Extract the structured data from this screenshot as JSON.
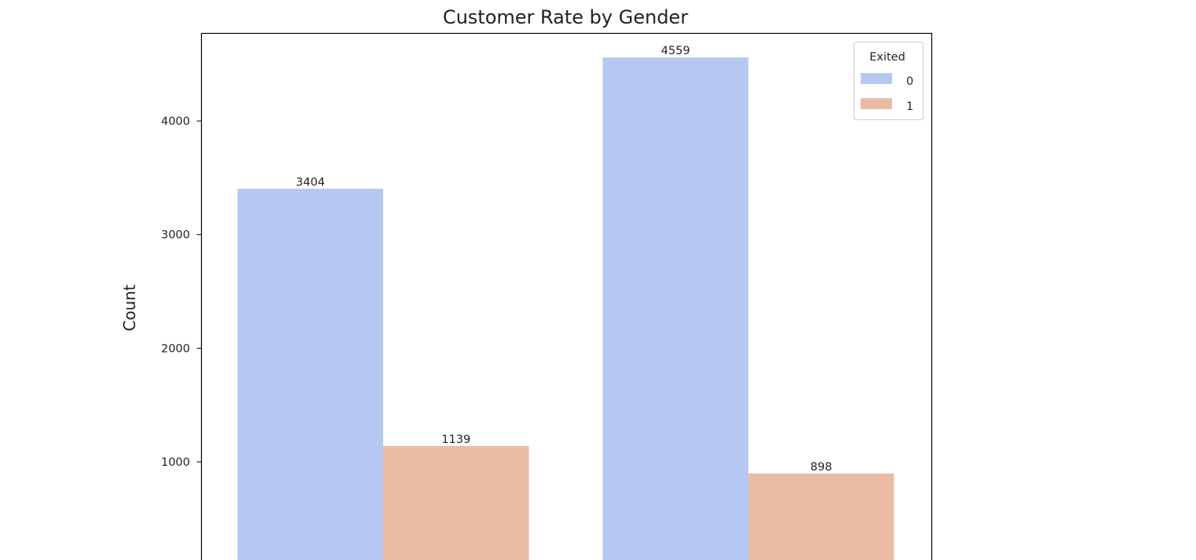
{
  "chart_data": {
    "type": "bar",
    "title": "Customer Rate by Gender",
    "xlabel": "",
    "ylabel": "Count",
    "categories": [
      "",
      ""
    ],
    "series": [
      {
        "name": "0",
        "values": [
          3404,
          4559
        ],
        "color": "#b4c8f2"
      },
      {
        "name": "1",
        "values": [
          1139,
          898
        ],
        "color": "#ecbba4"
      }
    ],
    "y_ticks": [
      1000,
      2000,
      3000,
      4000
    ],
    "ylim": [
      0,
      4787
    ],
    "grid": false,
    "legend": {
      "title": "Exited",
      "placement": "top-right"
    }
  }
}
